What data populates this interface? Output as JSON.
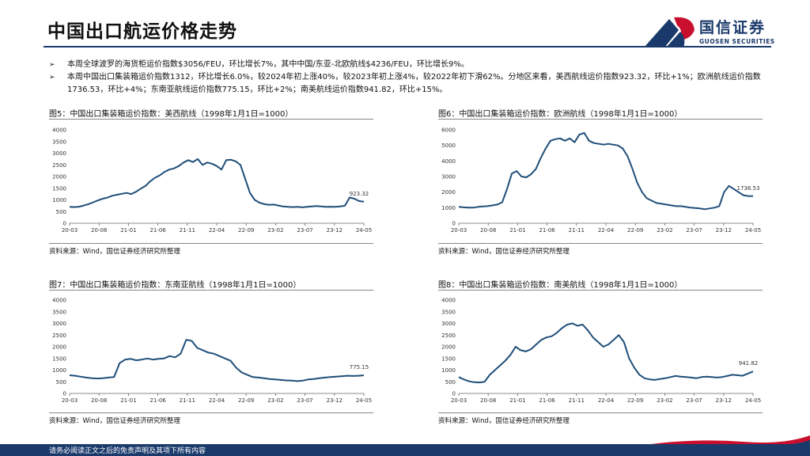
{
  "header": {
    "title": "中国出口航运价格走势",
    "logo_cn": "国信证券",
    "logo_en": "GUOSEN SECURITIES",
    "brand_color": "#1a3a6b",
    "accent_color": "#c8102e"
  },
  "bullets": [
    {
      "mark": "➢",
      "text": "本周全球波罗的海货柜运价指数$3056/FEU，环比增长7%，其中中国/东亚-北欧航线$4236/FEU，环比增长9%。"
    },
    {
      "mark": "➢",
      "text": "本周中国出口集装箱运价指数1312，环比增长6.0%，较2024年初上涨40%，较2023年初上涨4%，较2022年初下滑62%。分地区来看，美西航线运价指数923.32，环比+1%；欧洲航线运价指数1736.53，环比+4%；东南亚航线运价指数775.15，环比+2%；南美航线运价指数941.82，环比+15%。"
    }
  ],
  "footer": {
    "text": "请务必阅读正文之后的免责声明及其项下所有内容"
  },
  "panels": [
    {
      "title": "图5：中国出口集装箱运价指数：美西航线（1998年1月1日=1000）",
      "source": "资料来源：Wind，国信证券经济研究所整理"
    },
    {
      "title": "图6：中国出口集装箱运价指数：欧洲航线（1998年1月1日=1000）",
      "source": "资料来源：Wind，国信证券经济研究所整理"
    },
    {
      "title": "图7：中国出口集装箱运价指数：东南亚航线（1998年1月1日=1000）",
      "source": "资料来源：Wind，国信证券经济研究所整理"
    },
    {
      "title": "图8：中国出口集装箱运价指数：南美航线（1998年1月1日=1000）",
      "source": "资料来源：Wind，国信证券经济研究所整理"
    }
  ],
  "chart_data": [
    {
      "type": "line",
      "title": "中国出口集装箱运价指数：美西航线",
      "line_color": "#1f4e79",
      "x_ticks": [
        "20-03",
        "20-08",
        "21-01",
        "21-06",
        "21-11",
        "22-04",
        "22-09",
        "23-02",
        "23-07",
        "23-12",
        "24-05"
      ],
      "ylim": [
        0,
        4000
      ],
      "yticks": [
        0,
        500,
        1000,
        1500,
        2000,
        2500,
        3000,
        3500,
        4000
      ],
      "last_label": "923.32",
      "values": [
        700,
        690,
        710,
        760,
        820,
        900,
        980,
        1050,
        1100,
        1180,
        1220,
        1260,
        1300,
        1250,
        1350,
        1480,
        1600,
        1800,
        1950,
        2050,
        2200,
        2300,
        2350,
        2450,
        2600,
        2700,
        2620,
        2750,
        2500,
        2600,
        2550,
        2450,
        2300,
        2700,
        2720,
        2650,
        2500,
        1900,
        1300,
        1000,
        880,
        820,
        790,
        800,
        760,
        720,
        700,
        690,
        700,
        680,
        700,
        720,
        740,
        720,
        700,
        710,
        700,
        720,
        750,
        1100,
        1050,
        950,
        923.32
      ]
    },
    {
      "type": "line",
      "title": "中国出口集装箱运价指数：欧洲航线",
      "line_color": "#1f4e79",
      "x_ticks": [
        "20-03",
        "20-08",
        "21-01",
        "21-06",
        "21-11",
        "22-04",
        "22-09",
        "23-02",
        "23-07",
        "23-12",
        "24-05"
      ],
      "ylim": [
        0,
        6000
      ],
      "yticks": [
        0,
        1000,
        2000,
        3000,
        4000,
        5000,
        6000
      ],
      "last_label": "1736.53",
      "values": [
        1050,
        1020,
        1000,
        1000,
        1050,
        1080,
        1100,
        1150,
        1200,
        1350,
        2200,
        3200,
        3350,
        3000,
        2950,
        3150,
        3500,
        4200,
        4800,
        5300,
        5400,
        5450,
        5300,
        5450,
        5200,
        5700,
        5800,
        5300,
        5150,
        5100,
        5050,
        5100,
        5050,
        5000,
        4800,
        4300,
        3500,
        2600,
        2000,
        1600,
        1450,
        1300,
        1250,
        1200,
        1150,
        1100,
        1100,
        1050,
        1000,
        980,
        950,
        900,
        950,
        1000,
        1100,
        2000,
        2400,
        2200,
        2000,
        1800,
        1750,
        1736.53
      ]
    },
    {
      "type": "line",
      "title": "中国出口集装箱运价指数：东南亚航线",
      "line_color": "#1f4e79",
      "x_ticks": [
        "20-03",
        "20-08",
        "21-01",
        "21-06",
        "21-11",
        "22-04",
        "22-09",
        "23-02",
        "23-07",
        "23-12",
        "24-05"
      ],
      "ylim": [
        0,
        4000
      ],
      "yticks": [
        0,
        500,
        1000,
        1500,
        2000,
        2500,
        3000,
        3500,
        4000
      ],
      "last_label": "775.15",
      "values": [
        780,
        760,
        720,
        680,
        650,
        640,
        650,
        680,
        700,
        1300,
        1450,
        1480,
        1420,
        1450,
        1500,
        1450,
        1480,
        1500,
        1600,
        1550,
        1700,
        2300,
        2250,
        1950,
        1850,
        1750,
        1700,
        1600,
        1500,
        1400,
        1100,
        900,
        800,
        700,
        680,
        650,
        620,
        600,
        580,
        560,
        550,
        530,
        550,
        600,
        620,
        650,
        680,
        700,
        720,
        740,
        760,
        750,
        760,
        775.15
      ]
    },
    {
      "type": "line",
      "title": "中国出口集装箱运价指数：南美航线",
      "line_color": "#1f4e79",
      "x_ticks": [
        "20-03",
        "20-08",
        "21-01",
        "21-06",
        "21-11",
        "22-04",
        "22-09",
        "23-02",
        "23-07",
        "23-12",
        "24-05"
      ],
      "ylim": [
        0,
        4000
      ],
      "yticks": [
        0,
        500,
        1000,
        1500,
        2000,
        2500,
        3000,
        3500,
        4000
      ],
      "last_label": "941.82",
      "values": [
        700,
        600,
        520,
        480,
        470,
        500,
        800,
        1000,
        1200,
        1400,
        1650,
        2000,
        1850,
        1800,
        1900,
        2100,
        2300,
        2400,
        2450,
        2600,
        2800,
        2950,
        3000,
        2900,
        2950,
        2700,
        2400,
        2200,
        2000,
        2100,
        2300,
        2500,
        2200,
        1500,
        1100,
        800,
        650,
        600,
        580,
        620,
        650,
        700,
        750,
        720,
        700,
        680,
        650,
        700,
        720,
        700,
        680,
        700,
        750,
        800,
        780,
        760,
        850,
        941.82
      ]
    }
  ]
}
